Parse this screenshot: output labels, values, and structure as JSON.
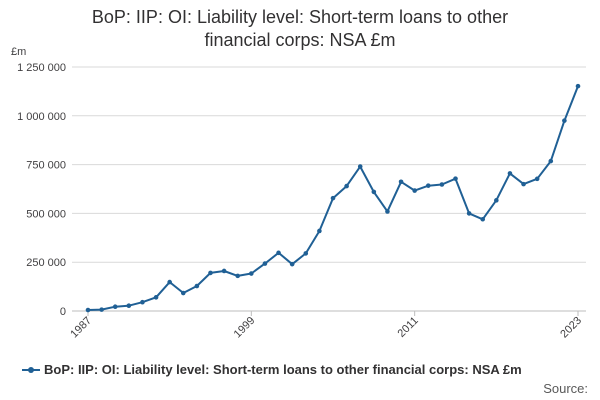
{
  "chart_data": {
    "type": "line",
    "title_lines": [
      "BoP: IIP: OI: Liability level: Short-term loans to other",
      "financial corps: NSA £m"
    ],
    "ylabel": "£m",
    "ylim": [
      0,
      1250000
    ],
    "yticks": [
      0,
      250000,
      500000,
      750000,
      1000000,
      1250000
    ],
    "ytick_labels": [
      "0",
      "250 000",
      "500 000",
      "750 000",
      "1 000 000",
      "1 250 000"
    ],
    "xlim": [
      1987,
      2023
    ],
    "xticks": [
      1987,
      1999,
      2011,
      2023
    ],
    "xtick_labels": [
      "1987",
      "1999",
      "2011",
      "2023"
    ],
    "grid": true,
    "legend_position": "bottom",
    "series": [
      {
        "name": "BoP: IIP: OI: Liability level: Short-term loans to other financial corps: NSA £m",
        "color": "#206095",
        "x": [
          1987,
          1988,
          1989,
          1990,
          1991,
          1992,
          1993,
          1994,
          1995,
          1996,
          1997,
          1998,
          1999,
          2000,
          2001,
          2002,
          2003,
          2004,
          2005,
          2006,
          2007,
          2008,
          2009,
          2010,
          2011,
          2012,
          2013,
          2014,
          2015,
          2016,
          2017,
          2018,
          2019,
          2020,
          2021,
          2022,
          2023
        ],
        "values": [
          5000,
          7000,
          22000,
          27000,
          45000,
          70000,
          148000,
          92000,
          128000,
          195000,
          205000,
          180000,
          192000,
          243000,
          298000,
          240000,
          295000,
          410000,
          578000,
          640000,
          740000,
          610000,
          510000,
          662000,
          617000,
          642000,
          648000,
          678000,
          500000,
          470000,
          567000,
          705000,
          650000,
          677000,
          768000,
          975000,
          1152000
        ]
      }
    ],
    "source_label": "Source:"
  }
}
